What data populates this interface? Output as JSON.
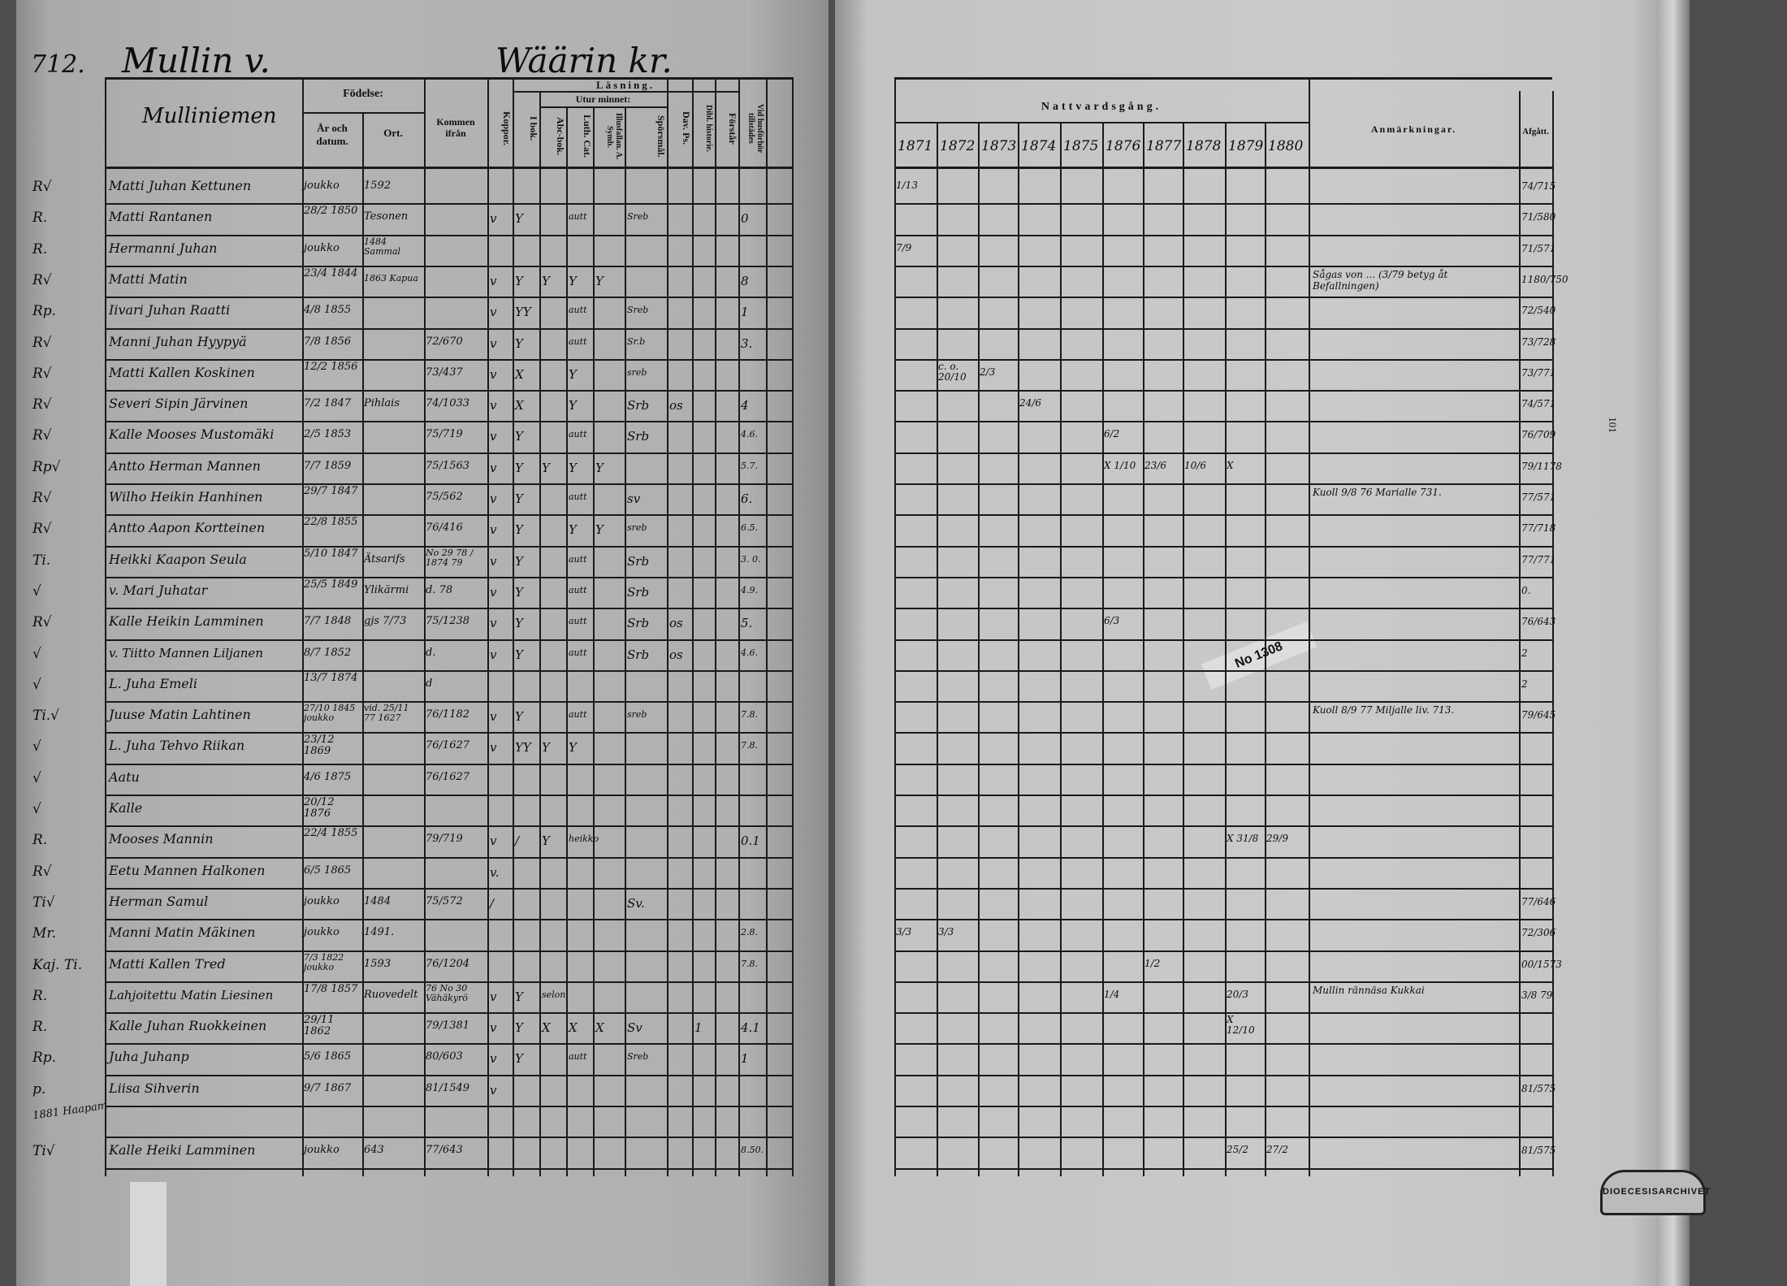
{
  "left_page": {
    "page_number": "712.",
    "village": "Mullin v.",
    "parish": "Wäärin kr.",
    "headers": {
      "name": "Mulliniemen",
      "birth": "Födelse:",
      "birth_year": "År och datum.",
      "birth_place": "Ort.",
      "came_from": "Kommen ifrån",
      "reading": "Läsning.",
      "by_heart": "Utur minnet:",
      "vertical": [
        "Koppor.",
        "I bok.",
        "Abc-bok.",
        "Luth. Cat.",
        "Illusfallan. A. Symb.",
        "Spörsmål.",
        "Dav. Ps.",
        "Dibl. historie.",
        "Förstår",
        "Vid husförhör tillstädes"
      ]
    },
    "rows": [
      {
        "mark": "R√",
        "name": "Matti Juhan Kettunen",
        "born": "joukko",
        "place": "1592",
        "from": "",
        "cells": [
          "",
          "",
          "",
          "",
          "",
          "",
          "",
          "",
          "",
          ""
        ]
      },
      {
        "mark": "R.",
        "name": "Matti Rantanen",
        "born": "28/2 1850",
        "place": "Tesonen",
        "from": "",
        "cells": [
          "v",
          "Y",
          "",
          "autt",
          "",
          "Sreb",
          "",
          "",
          "",
          "0"
        ]
      },
      {
        "mark": "R.",
        "name": "Hermanni Juhan",
        "born": "joukko",
        "place": "1484 Sammal",
        "from": "",
        "cells": [
          "",
          "",
          "",
          "",
          "",
          "",
          "",
          "",
          "",
          ""
        ]
      },
      {
        "mark": "R√",
        "name": "Matti Matin",
        "born": "23/4 1844",
        "place": "1863 Kapua",
        "from": "",
        "cells": [
          "v",
          "Y",
          "Y",
          "Y",
          "Y",
          "",
          "",
          "",
          "",
          "8"
        ]
      },
      {
        "mark": "Rp.",
        "name": "Iivari Juhan Raatti",
        "born": "4/8 1855",
        "place": "",
        "from": "",
        "cells": [
          "v",
          "YY",
          "",
          "autt",
          "",
          "Sreb",
          "",
          "",
          "",
          "1"
        ]
      },
      {
        "mark": "R√",
        "name": "Manni Juhan Hyypyä",
        "born": "7/8 1856",
        "place": "",
        "from": "72/670",
        "cells": [
          "v",
          "Y",
          "",
          "autt",
          "",
          "Sr.b",
          "",
          "",
          "",
          "3."
        ]
      },
      {
        "mark": "R√",
        "name": "Matti Kallen Koskinen",
        "born": "12/2 1856",
        "place": "",
        "from": "73/437",
        "cells": [
          "v",
          "X",
          "",
          "Y",
          "",
          "sreb",
          "",
          "",
          "",
          ""
        ]
      },
      {
        "mark": "R√",
        "name": "Severi Sipin Järvinen",
        "born": "7/2 1847",
        "place": "Pihlais",
        "from": "74/1033",
        "cells": [
          "v",
          "X",
          "",
          "Y",
          "",
          "Srb",
          "os",
          "",
          "",
          "4"
        ]
      },
      {
        "mark": "R√",
        "name": "Kalle Mooses Mustomäki",
        "born": "2/5 1853",
        "place": "",
        "from": "75/719",
        "cells": [
          "v",
          "Y",
          "",
          "autt",
          "",
          "Srb",
          "",
          "",
          "",
          "4.6."
        ]
      },
      {
        "mark": "Rp√",
        "name": "Antto Herman Mannen",
        "born": "7/7 1859",
        "place": "",
        "from": "75/1563",
        "cells": [
          "v",
          "Y",
          "Y",
          "Y",
          "Y",
          "",
          "",
          "",
          "",
          "5.7."
        ]
      },
      {
        "mark": "R√",
        "name": "Wilho Heikin Hanhinen",
        "born": "29/7 1847",
        "place": "",
        "from": "75/562",
        "cells": [
          "v",
          "Y",
          "",
          "autt",
          "",
          "sv",
          "",
          "",
          "",
          "6."
        ]
      },
      {
        "mark": "R√",
        "name": "Antto Aapon Kortteinen",
        "born": "22/8 1855",
        "place": "",
        "from": "76/416",
        "cells": [
          "v",
          "Y",
          "",
          "Y",
          "Y",
          "sreb",
          "",
          "",
          "",
          "6.5."
        ]
      },
      {
        "mark": "Ti.",
        "name": "Heikki Kaapon Seula",
        "born": "5/10 1847",
        "place": "Ätsarifs",
        "from": "No 29 78 / 1874 79",
        "cells": [
          "v",
          "Y",
          "",
          "autt",
          "",
          "Srb",
          "",
          "",
          "",
          "3. 0."
        ]
      },
      {
        "mark": "√",
        "name": "v. Mari Juhatar",
        "born": "25/5 1849",
        "place": "Ylikärmi",
        "from": "d. 78",
        "cells": [
          "v",
          "Y",
          "",
          "autt",
          "",
          "Srb",
          "",
          "",
          "",
          "4.9."
        ]
      },
      {
        "mark": "R√",
        "name": "Kalle Heikin Lamminen",
        "born": "7/7 1848",
        "place": "gjs 7/73",
        "from": "75/1238",
        "cells": [
          "v",
          "Y",
          "",
          "autt",
          "",
          "Srb",
          "os",
          "",
          "",
          "5."
        ]
      },
      {
        "mark": "√",
        "name": "v. Tiitto Mannen Liljanen",
        "born": "8/7 1852",
        "place": "",
        "from": "d.",
        "cells": [
          "v",
          "Y",
          "",
          "autt",
          "",
          "Srb",
          "os",
          "",
          "",
          "4.6."
        ]
      },
      {
        "mark": "√",
        "name": "L. Juha Emeli",
        "born": "13/7 1874",
        "place": "",
        "from": "d",
        "cells": [
          "",
          "",
          "",
          "",
          "",
          "",
          "",
          "",
          "",
          ""
        ]
      },
      {
        "mark": "Ti.√",
        "name": "Juuse Matin Lahtinen",
        "born": "27/10 1845 joukko",
        "place": "vid. 25/11 77 1627",
        "from": "76/1182",
        "cells": [
          "v",
          "Y",
          "",
          "autt",
          "",
          "sreb",
          "",
          "",
          "",
          "7.8."
        ]
      },
      {
        "mark": "√",
        "name": "L. Juha Tehvo Riikan",
        "born": "23/12 1869",
        "place": "",
        "from": "76/1627",
        "cells": [
          "v",
          "YY",
          "Y",
          "Y",
          "",
          "",
          "",
          "",
          "",
          "7.8."
        ]
      },
      {
        "mark": "√",
        "name": "Aatu",
        "born": "4/6 1875",
        "place": "",
        "from": "76/1627",
        "cells": [
          "",
          "",
          "",
          "",
          "",
          "",
          "",
          "",
          "",
          ""
        ]
      },
      {
        "mark": "√",
        "name": "Kalle",
        "born": "20/12 1876",
        "place": "",
        "from": "",
        "cells": [
          "",
          "",
          "",
          "",
          "",
          "",
          "",
          "",
          "",
          ""
        ]
      },
      {
        "mark": "R.",
        "name": "Mooses Mannin",
        "born": "22/4 1855",
        "place": "",
        "from": "79/719",
        "cells": [
          "v",
          "/",
          "Y",
          "heikko",
          "",
          "",
          "",
          "",
          "",
          "0.1"
        ]
      },
      {
        "mark": "R√",
        "name": "Eetu Mannen Halkonen",
        "born": "6/5 1865",
        "place": "",
        "from": "",
        "cells": [
          "v.",
          "",
          "",
          "",
          "",
          "",
          "",
          "",
          "",
          ""
        ]
      },
      {
        "mark": "Ti√",
        "name": "Herman Samul",
        "born": "joukko",
        "place": "1484",
        "from": "75/572",
        "cells": [
          "/",
          "",
          "",
          "",
          "",
          "Sv.",
          "",
          "",
          "",
          ""
        ]
      },
      {
        "mark": "Mr.",
        "name": "Manni Matin Mäkinen",
        "born": "joukko",
        "place": "1491.",
        "from": "",
        "cells": [
          "",
          "",
          "",
          "",
          "",
          "",
          "",
          "",
          "",
          "2.8."
        ]
      },
      {
        "mark": "Kaj. Ti.",
        "name": "Matti Kallen Tred",
        "born": "7/3 1822 joukko",
        "place": "1593",
        "from": "76/1204",
        "cells": [
          "",
          "",
          "",
          "",
          "",
          "",
          "",
          "",
          "",
          "7.8."
        ]
      },
      {
        "mark": "R.",
        "name": "Lahjoitettu Matin Liesinen",
        "born": "17/8 1857",
        "place": "Ruovedelt",
        "from": "76 No 30 Vähäkyrö",
        "cells": [
          "v",
          "Y",
          "selon",
          "",
          "",
          "",
          "",
          "",
          "",
          ""
        ]
      },
      {
        "mark": "R.",
        "name": "Kalle Juhan Ruokkeinen",
        "born": "29/11 1862",
        "place": "",
        "from": "79/1381",
        "cells": [
          "v",
          "Y",
          "X",
          "X",
          "X",
          "Sv",
          "",
          "1",
          "",
          "4.1"
        ]
      },
      {
        "mark": "Rp.",
        "name": "Juha Juhanp",
        "born": "5/6 1865",
        "place": "",
        "from": "80/603",
        "cells": [
          "v",
          "Y",
          "",
          "autt",
          "",
          "Sreb",
          "",
          "",
          "",
          "1"
        ]
      },
      {
        "mark": "p.",
        "name": "Liisa Sihverin",
        "born": "9/7 1867",
        "place": "",
        "from": "81/1549",
        "cells": [
          "v",
          "",
          "",
          "",
          "",
          "",
          "",
          "",
          "",
          ""
        ]
      },
      {
        "mark": "",
        "name": "",
        "born": "",
        "place": "",
        "from": "",
        "cells": [
          "",
          "",
          "",
          "",
          "",
          "",
          "",
          "",
          "",
          ""
        ]
      },
      {
        "mark": "Ti√",
        "name": "Kalle Heiki Lamminen",
        "born": "joukko",
        "place": "643",
        "from": "77/643",
        "cells": [
          "",
          "",
          "",
          "",
          "",
          "",
          "",
          "",
          "",
          "8.50."
        ]
      }
    ],
    "margin_note": "1881 Haapam"
  },
  "right_page": {
    "communion_header": "Nattvardsgång.",
    "years": [
      "1871",
      "1872",
      "1873",
      "1874",
      "1875",
      "1876",
      "1877",
      "1878",
      "1879",
      "1880"
    ],
    "notes_header": "Anmärkningar.",
    "departed_header": "Afgått.",
    "communion_marks": [
      {
        "row": 0,
        "year": 0,
        "text": "1/13"
      },
      {
        "row": 2,
        "year": 0,
        "text": "7/9"
      },
      {
        "row": 6,
        "year": 1,
        "text": "c. o. 20/10"
      },
      {
        "row": 6,
        "year": 2,
        "text": "2/3"
      },
      {
        "row": 7,
        "year": 3,
        "text": "24/6"
      },
      {
        "row": 8,
        "year": 5,
        "text": "6/2"
      },
      {
        "row": 9,
        "year": 5,
        "text": "X 1/10"
      },
      {
        "row": 9,
        "year": 6,
        "text": "23/6"
      },
      {
        "row": 9,
        "year": 7,
        "text": "10/6"
      },
      {
        "row": 9,
        "year": 8,
        "text": "X"
      },
      {
        "row": 14,
        "year": 5,
        "text": "6/3"
      },
      {
        "row": 21,
        "year": 8,
        "text": "X 31/8"
      },
      {
        "row": 21,
        "year": 9,
        "text": "29/9"
      },
      {
        "row": 24,
        "year": 0,
        "text": "3/3"
      },
      {
        "row": 24,
        "year": 1,
        "text": "3/3"
      },
      {
        "row": 25,
        "year": 6,
        "text": "1/2"
      },
      {
        "row": 26,
        "year": 5,
        "text": "1/4"
      },
      {
        "row": 26,
        "year": 8,
        "text": "20/3"
      },
      {
        "row": 27,
        "year": 8,
        "text": "X 12/10"
      },
      {
        "row": 31,
        "year": 8,
        "text": "25/2"
      },
      {
        "row": 31,
        "year": 9,
        "text": "27/2"
      }
    ],
    "notes": [
      {
        "row": 3,
        "text": "Sågas von ... (3/79 betyg åt Befallningen)"
      },
      {
        "row": 10,
        "text": "Kuoll 9/8 76 Marialle 731."
      },
      {
        "row": 17,
        "text": "Kuoll 8/9 77 Miljalle liv. 713."
      },
      {
        "row": 26,
        "text": "Mullin rännäsa Kukkai"
      }
    ],
    "departed": [
      {
        "row": 0,
        "text": "74/715"
      },
      {
        "row": 1,
        "text": "71/580"
      },
      {
        "row": 2,
        "text": "71/571"
      },
      {
        "row": 3,
        "text": "1180/750"
      },
      {
        "row": 4,
        "text": "72/540"
      },
      {
        "row": 5,
        "text": "73/728"
      },
      {
        "row": 6,
        "text": "73/771"
      },
      {
        "row": 7,
        "text": "74/571"
      },
      {
        "row": 8,
        "text": "76/709"
      },
      {
        "row": 9,
        "text": "79/1178"
      },
      {
        "row": 10,
        "text": "77/571"
      },
      {
        "row": 11,
        "text": "77/718"
      },
      {
        "row": 12,
        "text": "77/771"
      },
      {
        "row": 13,
        "text": "0."
      },
      {
        "row": 14,
        "text": "76/643"
      },
      {
        "row": 15,
        "text": "2"
      },
      {
        "row": 16,
        "text": "2"
      },
      {
        "row": 17,
        "text": "79/645"
      },
      {
        "row": 23,
        "text": "77/646"
      },
      {
        "row": 24,
        "text": "72/306"
      },
      {
        "row": 25,
        "text": "00/1573"
      },
      {
        "row": 26,
        "text": "3/8 79"
      },
      {
        "row": 29,
        "text": "81/575"
      },
      {
        "row": 31,
        "text": "81/575"
      }
    ],
    "slip_label": "No 1308",
    "side_number": "101",
    "stamp_text": "DIOECESISARCHIVET"
  }
}
